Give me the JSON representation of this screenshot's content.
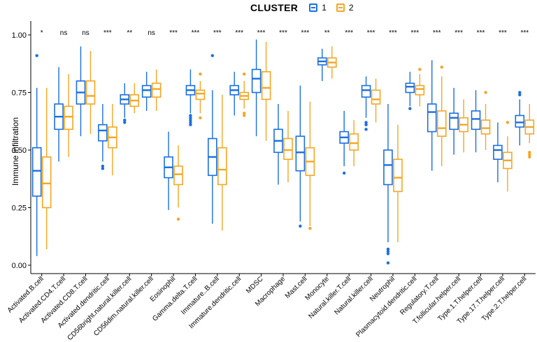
{
  "chart_data": {
    "type": "boxplot",
    "ylabel": "Immune infiltration",
    "xlabel": "",
    "ylim": [
      -0.02,
      1.05
    ],
    "yticks": [
      "0.00",
      "0.25",
      "0.50",
      "0.75",
      "1.00"
    ],
    "legend": {
      "title": "CLUSTER",
      "placement": "top",
      "entries": [
        "1",
        "2"
      ]
    },
    "colors": {
      "1": "#1a6fdf",
      "2": "#f5a623"
    },
    "categories": [
      "Activated.B.cell",
      "Activated.CD4.T.cell",
      "Activated.CD8.T.cell",
      "Activated.dendritic.cell",
      "CD56bright.natural.killer.cell",
      "CD56dim.natural.killer.cell",
      "Eosinophil",
      "Gamma.delta.T.cell",
      "Immature..B.cell",
      "Immature.dendritic.cell",
      "MDSC",
      "Macrophage",
      "Mast.cell",
      "Monocyte",
      "Natural.killer.T.cell",
      "Natural.killer.cell",
      "Neutrophil",
      "Plasmacytoid.dendritic.cell",
      "Regulatory.T.cell",
      "T.follicular.helper.cell",
      "Type.1.T.helper.cell",
      "Type.17.T.helper.cell",
      "Type.2.T.helper.cell"
    ],
    "significance": [
      "*",
      "ns",
      "ns",
      "***",
      "**",
      "ns",
      "***",
      "***",
      "***",
      "***",
      "***",
      "***",
      "***",
      "**",
      "***",
      "***",
      "***",
      "***",
      "***",
      "***",
      "***",
      "***",
      "***"
    ],
    "series": [
      {
        "name": "1",
        "boxes": [
          {
            "min": 0.04,
            "q1": 0.3,
            "median": 0.41,
            "q3": 0.51,
            "max": 0.77,
            "outliers": [
              0.91
            ]
          },
          {
            "min": 0.45,
            "q1": 0.59,
            "median": 0.645,
            "q3": 0.7,
            "max": 0.86,
            "outliers": []
          },
          {
            "min": 0.56,
            "q1": 0.7,
            "median": 0.75,
            "q3": 0.8,
            "max": 0.95,
            "outliers": []
          },
          {
            "min": 0.45,
            "q1": 0.54,
            "median": 0.585,
            "q3": 0.61,
            "max": 0.7,
            "outliers": [
              0.42,
              0.43
            ]
          },
          {
            "min": 0.64,
            "q1": 0.7,
            "median": 0.72,
            "q3": 0.74,
            "max": 0.79,
            "outliers": [
              0.62,
              0.63
            ]
          },
          {
            "min": 0.67,
            "q1": 0.73,
            "median": 0.76,
            "q3": 0.78,
            "max": 0.84,
            "outliers": []
          },
          {
            "min": 0.24,
            "q1": 0.38,
            "median": 0.425,
            "q3": 0.47,
            "max": 0.58,
            "outliers": []
          },
          {
            "min": 0.66,
            "q1": 0.74,
            "median": 0.76,
            "q3": 0.78,
            "max": 0.85,
            "outliers": [
              0.61,
              0.62,
              0.63,
              0.64,
              0.65
            ]
          },
          {
            "min": 0.18,
            "q1": 0.39,
            "median": 0.47,
            "q3": 0.55,
            "max": 0.76,
            "outliers": [
              0.91
            ]
          },
          {
            "min": 0.65,
            "q1": 0.74,
            "median": 0.76,
            "q3": 0.78,
            "max": 0.84,
            "outliers": []
          },
          {
            "min": 0.56,
            "q1": 0.75,
            "median": 0.81,
            "q3": 0.85,
            "max": 0.98,
            "outliers": []
          },
          {
            "min": 0.35,
            "q1": 0.49,
            "median": 0.54,
            "q3": 0.59,
            "max": 0.7,
            "outliers": []
          },
          {
            "min": 0.19,
            "q1": 0.41,
            "median": 0.49,
            "q3": 0.56,
            "max": 0.78,
            "outliers": [
              0.17
            ]
          },
          {
            "min": 0.8,
            "q1": 0.87,
            "median": 0.885,
            "q3": 0.9,
            "max": 0.94,
            "outliers": []
          },
          {
            "min": 0.43,
            "q1": 0.53,
            "median": 0.555,
            "q3": 0.58,
            "max": 0.67,
            "outliers": [
              0.4
            ]
          },
          {
            "min": 0.64,
            "q1": 0.73,
            "median": 0.76,
            "q3": 0.78,
            "max": 0.82,
            "outliers": [
              0.59,
              0.61,
              0.62
            ]
          },
          {
            "min": 0.1,
            "q1": 0.35,
            "median": 0.435,
            "q3": 0.5,
            "max": 0.7,
            "outliers": [
              0.01,
              0.05,
              0.06,
              0.07
            ]
          },
          {
            "min": 0.69,
            "q1": 0.75,
            "median": 0.775,
            "q3": 0.79,
            "max": 0.84,
            "outliers": [
              0.68
            ]
          },
          {
            "min": 0.41,
            "q1": 0.58,
            "median": 0.665,
            "q3": 0.7,
            "max": 0.89,
            "outliers": []
          },
          {
            "min": 0.48,
            "q1": 0.59,
            "median": 0.64,
            "q3": 0.66,
            "max": 0.77,
            "outliers": []
          },
          {
            "min": 0.49,
            "q1": 0.59,
            "median": 0.635,
            "q3": 0.67,
            "max": 0.76,
            "outliers": []
          },
          {
            "min": 0.36,
            "q1": 0.46,
            "median": 0.5,
            "q3": 0.52,
            "max": 0.62,
            "outliers": []
          },
          {
            "min": 0.52,
            "q1": 0.6,
            "median": 0.62,
            "q3": 0.65,
            "max": 0.72,
            "outliers": [
              0.74,
              0.75
            ]
          }
        ]
      },
      {
        "name": "2",
        "boxes": [
          {
            "min": 0.07,
            "q1": 0.25,
            "median": 0.355,
            "q3": 0.47,
            "max": 0.77,
            "outliers": []
          },
          {
            "min": 0.47,
            "q1": 0.59,
            "median": 0.645,
            "q3": 0.69,
            "max": 0.83,
            "outliers": []
          },
          {
            "min": 0.57,
            "q1": 0.7,
            "median": 0.735,
            "q3": 0.8,
            "max": 0.93,
            "outliers": []
          },
          {
            "min": 0.39,
            "q1": 0.51,
            "median": 0.555,
            "q3": 0.6,
            "max": 0.7,
            "outliers": []
          },
          {
            "min": 0.66,
            "q1": 0.69,
            "median": 0.715,
            "q3": 0.74,
            "max": 0.79,
            "outliers": []
          },
          {
            "min": 0.67,
            "q1": 0.73,
            "median": 0.765,
            "q3": 0.79,
            "max": 0.85,
            "outliers": []
          },
          {
            "min": 0.25,
            "q1": 0.35,
            "median": 0.395,
            "q3": 0.43,
            "max": 0.52,
            "outliers": [
              0.2
            ]
          },
          {
            "min": 0.66,
            "q1": 0.72,
            "median": 0.745,
            "q3": 0.76,
            "max": 0.8,
            "outliers": [
              0.64,
              0.83
            ]
          },
          {
            "min": 0.15,
            "q1": 0.35,
            "median": 0.415,
            "q3": 0.51,
            "max": 0.74,
            "outliers": []
          },
          {
            "min": 0.68,
            "q1": 0.72,
            "median": 0.735,
            "q3": 0.75,
            "max": 0.8,
            "outliers": [
              0.65,
              0.66,
              0.83
            ]
          },
          {
            "min": 0.54,
            "q1": 0.72,
            "median": 0.77,
            "q3": 0.84,
            "max": 0.97,
            "outliers": []
          },
          {
            "min": 0.36,
            "q1": 0.46,
            "median": 0.5,
            "q3": 0.55,
            "max": 0.67,
            "outliers": []
          },
          {
            "min": 0.17,
            "q1": 0.39,
            "median": 0.45,
            "q3": 0.51,
            "max": 0.71,
            "outliers": [
              0.16
            ]
          },
          {
            "min": 0.81,
            "q1": 0.86,
            "median": 0.88,
            "q3": 0.9,
            "max": 0.95,
            "outliers": []
          },
          {
            "min": 0.43,
            "q1": 0.5,
            "median": 0.53,
            "q3": 0.57,
            "max": 0.63,
            "outliers": []
          },
          {
            "min": 0.62,
            "q1": 0.7,
            "median": 0.72,
            "q3": 0.76,
            "max": 0.81,
            "outliers": []
          },
          {
            "min": 0.1,
            "q1": 0.32,
            "median": 0.38,
            "q3": 0.46,
            "max": 0.61,
            "outliers": []
          },
          {
            "min": 0.69,
            "q1": 0.74,
            "median": 0.765,
            "q3": 0.78,
            "max": 0.83,
            "outliers": [
              0.85
            ]
          },
          {
            "min": 0.43,
            "q1": 0.56,
            "median": 0.595,
            "q3": 0.67,
            "max": 0.82,
            "outliers": [
              0.86
            ]
          },
          {
            "min": 0.49,
            "q1": 0.58,
            "median": 0.61,
            "q3": 0.64,
            "max": 0.72,
            "outliers": []
          },
          {
            "min": 0.5,
            "q1": 0.57,
            "median": 0.595,
            "q3": 0.63,
            "max": 0.7,
            "outliers": [
              0.75
            ]
          },
          {
            "min": 0.32,
            "q1": 0.42,
            "median": 0.455,
            "q3": 0.49,
            "max": 0.56,
            "outliers": [
              0.62
            ]
          },
          {
            "min": 0.53,
            "q1": 0.57,
            "median": 0.6,
            "q3": 0.63,
            "max": 0.7,
            "outliers": [
              0.47,
              0.48,
              0.49
            ]
          }
        ]
      }
    ]
  }
}
